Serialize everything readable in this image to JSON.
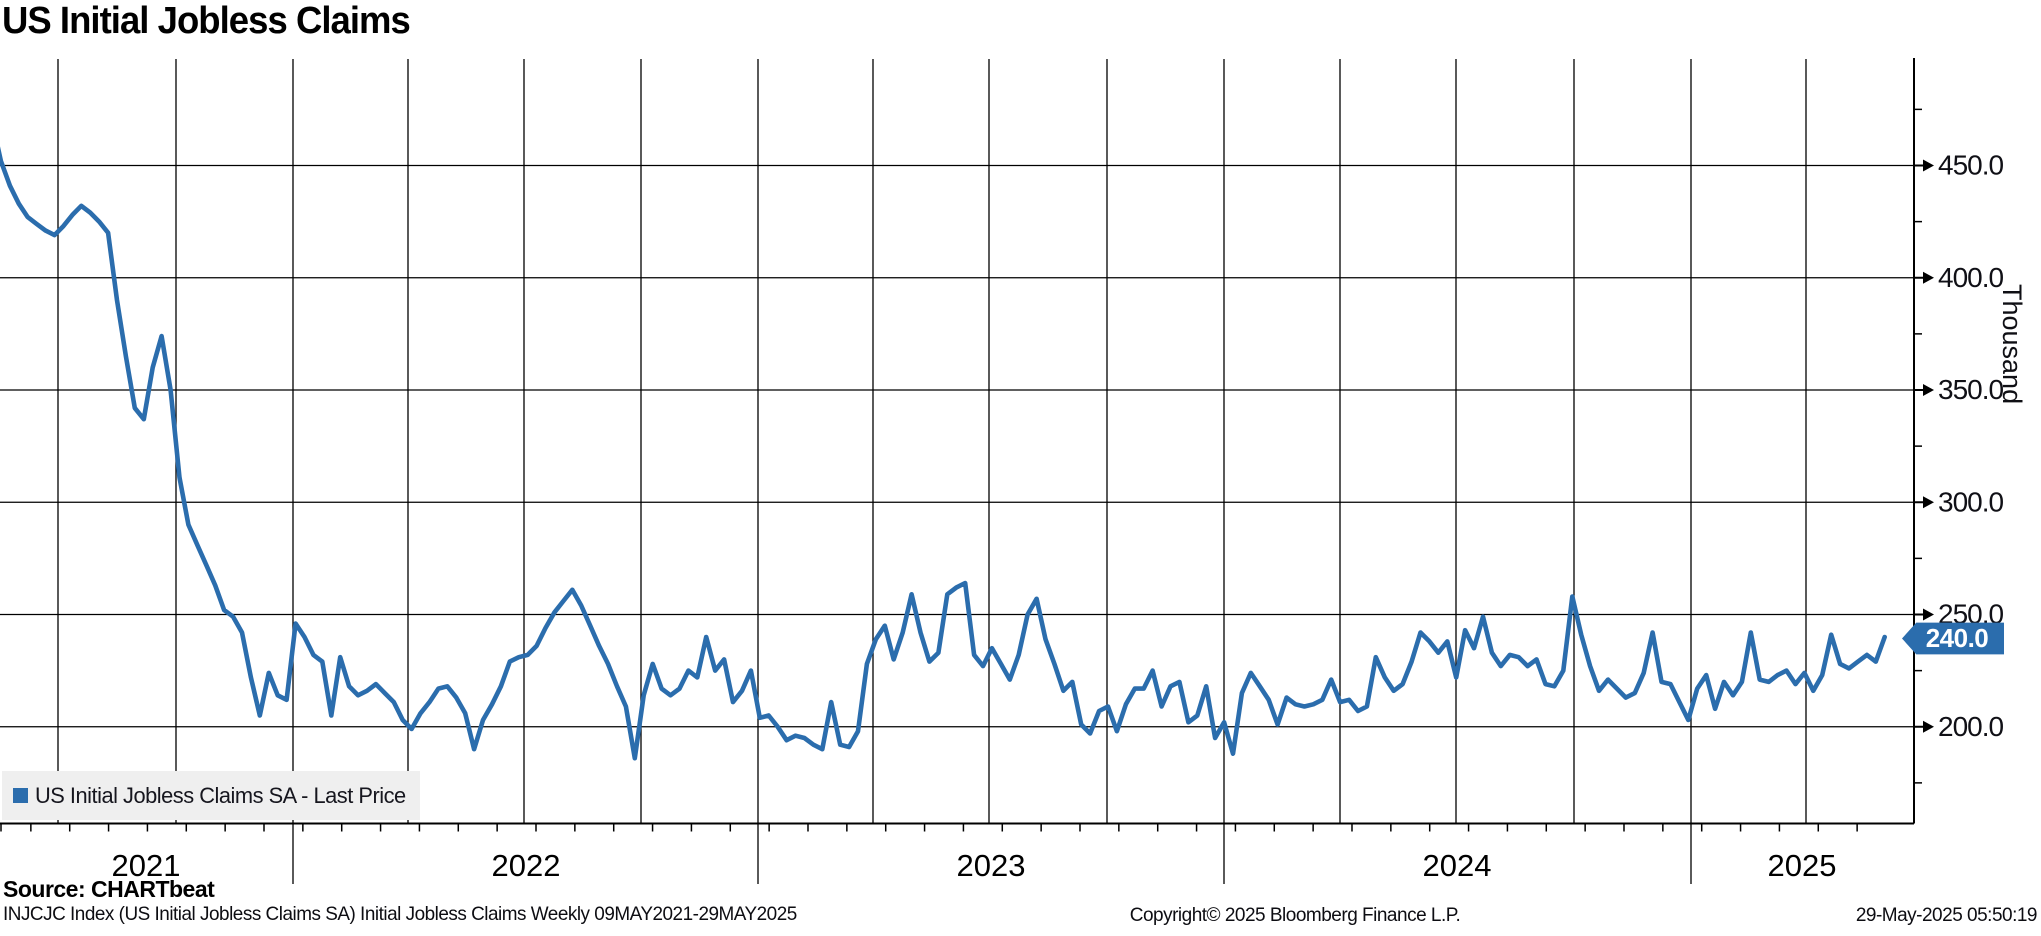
{
  "title": "US Initial Jobless Claims",
  "axis": {
    "unit_label": "Thousand",
    "ytick_labels": [
      "450.0",
      "400.0",
      "350.0",
      "300.0",
      "250.0",
      "200.0"
    ],
    "yticks": [
      450,
      400,
      350,
      300,
      250,
      200
    ],
    "minor_yticks": [
      475,
      425,
      375,
      325,
      275,
      225,
      175
    ],
    "year_labels": [
      "2021",
      "2022",
      "2023",
      "2024",
      "2025"
    ]
  },
  "legend": {
    "label": "US Initial Jobless Claims SA - Last Price"
  },
  "last_price": {
    "label": "240.0",
    "value": 240.0
  },
  "footer": {
    "source": "Source: CHARTbeat",
    "description": "INJCJC Index (US Initial Jobless Claims SA) Initial Jobless Claims  Weekly 09MAY2021-29MAY2025",
    "copyright": "Copyright© 2025 Bloomberg Finance L.P.",
    "timestamp": "29-May-2025 05:50:19"
  },
  "colors": {
    "line": "#2b6dad",
    "badge_fill": "#2b6dad",
    "badge_text": "#ffffff",
    "grid": "#000000",
    "axis_text": "#101016",
    "legend_bg": "#efefef",
    "background": "#ffffff"
  },
  "chart_data": {
    "type": "line",
    "title": "US Initial Jobless Claims",
    "ylabel": "Thousand",
    "ylim": [
      156,
      497
    ],
    "x_start": "09MAY2021",
    "x_end": "29MAY2025",
    "frequency": "weekly",
    "grid": "on",
    "legend_position": "bottom-left",
    "series": [
      {
        "name": "US Initial Jobless Claims SA - Last Price",
        "last_value": 240.0,
        "values": [
          470,
          452,
          441,
          433,
          427,
          424,
          421,
          419,
          423,
          428,
          432,
          429,
          425,
          420,
          390,
          365,
          342,
          337,
          360,
          374,
          350,
          311,
          290,
          281,
          272,
          263,
          252,
          249,
          242,
          222,
          205,
          224,
          214,
          212,
          246,
          240,
          232,
          229,
          205,
          231,
          218,
          214,
          216,
          219,
          215,
          211,
          203,
          199,
          206,
          211,
          217,
          218,
          213,
          206,
          190,
          203,
          210,
          218,
          229,
          231,
          232,
          236,
          244,
          251,
          256,
          261,
          254,
          245,
          236,
          228,
          218,
          209,
          186,
          214,
          228,
          217,
          214,
          217,
          225,
          222,
          240,
          225,
          230,
          211,
          216,
          225,
          204,
          205,
          200,
          194,
          196,
          195,
          192,
          190,
          211,
          192,
          191,
          198,
          228,
          239,
          245,
          230,
          242,
          259,
          242,
          229,
          233,
          259,
          262,
          264,
          232,
          227,
          235,
          228,
          221,
          232,
          250,
          257,
          239,
          228,
          216,
          220,
          201,
          197,
          207,
          209,
          198,
          210,
          217,
          217,
          225,
          209,
          218,
          220,
          202,
          205,
          218,
          195,
          202,
          188,
          215,
          224,
          218,
          212,
          201,
          213,
          210,
          209,
          210,
          212,
          221,
          211,
          212,
          207,
          209,
          231,
          222,
          216,
          219,
          229,
          242,
          238,
          233,
          238,
          222,
          243,
          235,
          249,
          233,
          227,
          232,
          231,
          227,
          230,
          219,
          218,
          225,
          258,
          241,
          227,
          216,
          221,
          217,
          213,
          215,
          224,
          242,
          220,
          219,
          211,
          203,
          217,
          223,
          208,
          220,
          214,
          220,
          242,
          221,
          220,
          223,
          225,
          219,
          224,
          216,
          223,
          241,
          228,
          226,
          229,
          232,
          229,
          240
        ]
      }
    ]
  }
}
